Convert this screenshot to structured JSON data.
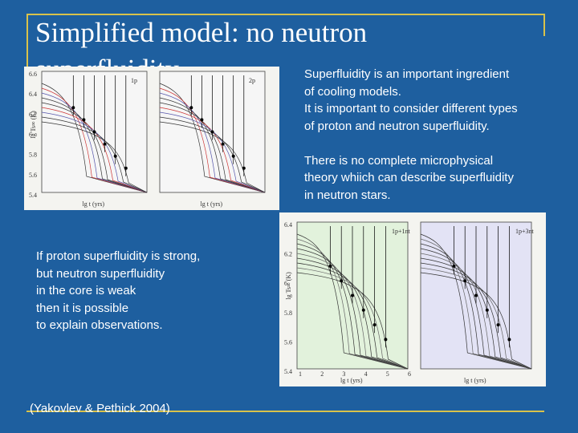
{
  "slide": {
    "title": "Simplified model: no neutron superfluidity",
    "right_text": [
      "Superfluidity is an important ingredient",
      "of cooling models.",
      "It is important to consider different types",
      "of proton and neutron superfluidity.",
      "",
      "There is no complete microphysical",
      "theory whiich can describe superfluidity",
      "in neutron stars."
    ],
    "left_text": [
      "If proton superfluidity is strong,",
      "but neutron superfluidity",
      "in the core is weak",
      "then it is possible",
      "to explain observations."
    ],
    "citation": "(Yakovlev & Pethick 2004)",
    "figure1": {
      "panels": [
        "1p",
        "2p"
      ],
      "y_label": "lg Ts∞ (K)",
      "x_label": "lg t  (yrs)",
      "yticks": [
        "6.6",
        "6.4",
        "6.2",
        "6",
        "5.8",
        "5.6",
        "5.4"
      ]
    },
    "figure2": {
      "panels": [
        "1p+1nt",
        "1p+3nt"
      ],
      "y_label": "lg Ts∞ (K)",
      "x_label": "lg t  (yrs)",
      "yticks": [
        "6.4",
        "6.2",
        "6",
        "5.8",
        "5.6",
        "5.4"
      ],
      "xticks": [
        "1",
        "2",
        "3",
        "4",
        "5",
        "6"
      ]
    }
  }
}
